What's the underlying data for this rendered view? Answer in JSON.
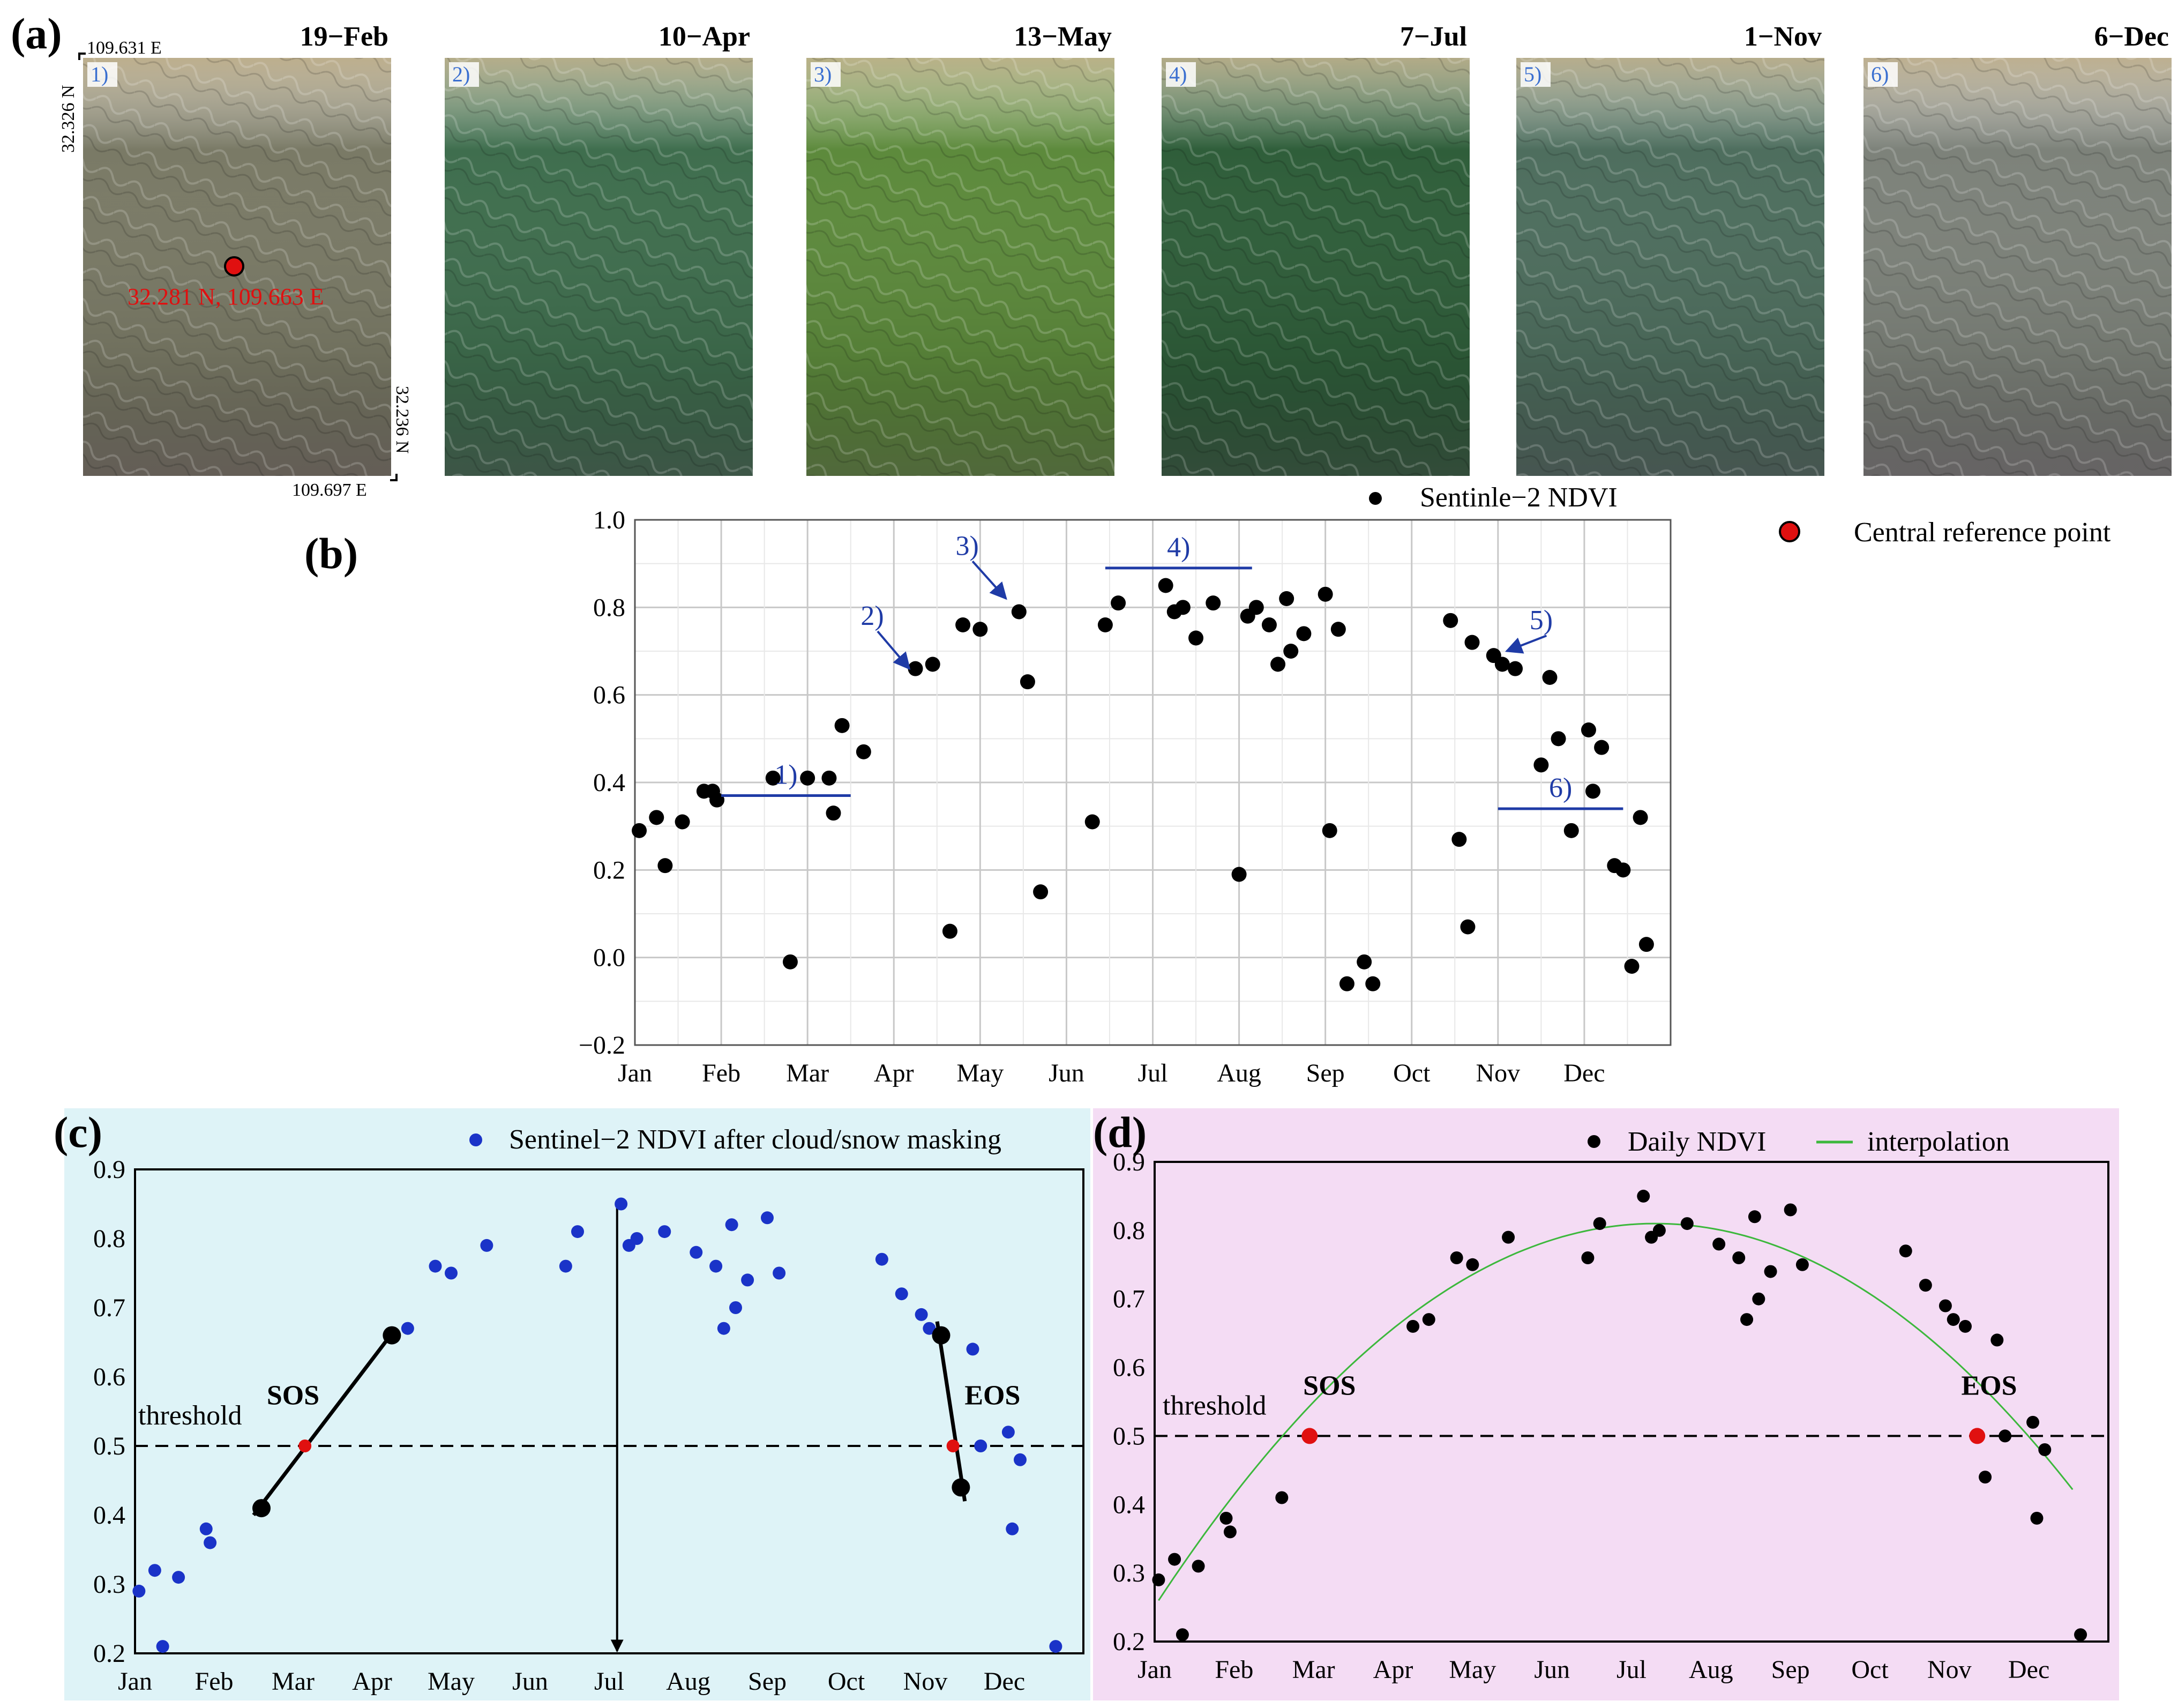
{
  "panel_a": {
    "label": "(a)",
    "images": [
      {
        "num": "1)",
        "date": "19−Feb",
        "tint": "#7a7a66"
      },
      {
        "num": "2)",
        "date": "10−Apr",
        "tint": "#3f6e4e"
      },
      {
        "num": "3)",
        "date": "13−May",
        "tint": "#5d8a3c"
      },
      {
        "num": "4)",
        "date": "7−Jul",
        "tint": "#2f5e3a"
      },
      {
        "num": "5)",
        "date": "1−Nov",
        "tint": "#4e6e5e"
      },
      {
        "num": "6)",
        "date": "6−Dec",
        "tint": "#7d827a"
      }
    ],
    "coords": {
      "top_lon": "109.631  E",
      "left_lat": "32.326  N",
      "right_lat": "32.236  N",
      "bottom_lon": "109.697  E",
      "ref_point": "32.281  N, 109.663  E"
    },
    "ref_legend": "Central reference point",
    "ref_color": "#e01010"
  },
  "months": [
    "Jan",
    "Feb",
    "Mar",
    "Apr",
    "May",
    "Jun",
    "Jul",
    "Aug",
    "Sep",
    "Oct",
    "Nov",
    "Dec"
  ],
  "chart_data": [
    {
      "panel": "(b)",
      "type": "scatter",
      "legend": "Sentinle−2 NDVI",
      "ylim": [
        -0.2,
        1.0
      ],
      "yticks": [
        "1.0",
        "0.8",
        "0.6",
        "0.4",
        "0.2",
        "0.0",
        "−0.2"
      ],
      "color": "#000000",
      "points": [
        [
          0.05,
          0.29
        ],
        [
          0.25,
          0.32
        ],
        [
          0.35,
          0.21
        ],
        [
          0.55,
          0.31
        ],
        [
          0.8,
          0.38
        ],
        [
          0.9,
          0.38
        ],
        [
          0.95,
          0.36
        ],
        [
          1.6,
          0.41
        ],
        [
          1.8,
          -0.01
        ],
        [
          2.0,
          0.41
        ],
        [
          2.25,
          0.41
        ],
        [
          2.3,
          0.33
        ],
        [
          2.4,
          0.53
        ],
        [
          2.65,
          0.47
        ],
        [
          3.25,
          0.66
        ],
        [
          3.45,
          0.67
        ],
        [
          3.65,
          0.06
        ],
        [
          3.8,
          0.76
        ],
        [
          4.0,
          0.75
        ],
        [
          4.45,
          0.79
        ],
        [
          4.55,
          0.63
        ],
        [
          4.7,
          0.15
        ],
        [
          5.3,
          0.31
        ],
        [
          5.45,
          0.76
        ],
        [
          5.6,
          0.81
        ],
        [
          6.15,
          0.85
        ],
        [
          6.25,
          0.79
        ],
        [
          6.35,
          0.8
        ],
        [
          6.5,
          0.73
        ],
        [
          6.7,
          0.81
        ],
        [
          7.0,
          0.19
        ],
        [
          7.1,
          0.78
        ],
        [
          7.2,
          0.8
        ],
        [
          7.35,
          0.76
        ],
        [
          7.45,
          0.67
        ],
        [
          7.55,
          0.82
        ],
        [
          7.6,
          0.7
        ],
        [
          7.75,
          0.74
        ],
        [
          8.0,
          0.83
        ],
        [
          8.05,
          0.29
        ],
        [
          8.15,
          0.75
        ],
        [
          8.25,
          -0.06
        ],
        [
          8.45,
          -0.01
        ],
        [
          8.55,
          -0.06
        ],
        [
          9.45,
          0.77
        ],
        [
          9.55,
          0.27
        ],
        [
          9.65,
          0.07
        ],
        [
          9.7,
          0.72
        ],
        [
          9.95,
          0.69
        ],
        [
          10.05,
          0.67
        ],
        [
          10.2,
          0.66
        ],
        [
          10.5,
          0.44
        ],
        [
          10.6,
          0.64
        ],
        [
          10.7,
          0.5
        ],
        [
          10.85,
          0.29
        ],
        [
          11.05,
          0.52
        ],
        [
          11.1,
          0.38
        ],
        [
          11.2,
          0.48
        ],
        [
          11.35,
          0.21
        ],
        [
          11.45,
          0.2
        ],
        [
          11.55,
          -0.02
        ],
        [
          11.65,
          0.32
        ],
        [
          11.72,
          0.03
        ]
      ],
      "hlines": [
        {
          "label": "1)",
          "x0": 1.0,
          "x1": 2.5,
          "y": 0.37
        },
        {
          "label": "4)",
          "x0": 5.45,
          "x1": 7.15,
          "y": 0.89
        },
        {
          "label": "6)",
          "x0": 10.0,
          "x1": 11.45,
          "y": 0.34
        }
      ],
      "arrows": [
        {
          "label": "2)",
          "tx": 2.75,
          "ty": 0.76,
          "hx": 3.18,
          "hy": 0.66
        },
        {
          "label": "3)",
          "tx": 3.85,
          "ty": 0.92,
          "hx": 4.3,
          "hy": 0.82
        },
        {
          "label": "5)",
          "tx": 10.5,
          "ty": 0.75,
          "hx": 10.1,
          "hy": 0.7
        }
      ]
    },
    {
      "panel": "(c)",
      "type": "scatter",
      "legend": "Sentinel−2 NDVI after cloud/snow masking",
      "ylim": [
        0.2,
        0.9
      ],
      "yticks": [
        "0.9",
        "0.8",
        "0.7",
        "0.6",
        "0.5",
        "0.4",
        "0.3",
        "0.2"
      ],
      "color": "#1a33c8",
      "threshold": 0.5,
      "threshold_label": "threshold",
      "sos_label": "SOS",
      "eos_label": "EOS",
      "points": [
        [
          0.05,
          0.29
        ],
        [
          0.25,
          0.32
        ],
        [
          0.35,
          0.21
        ],
        [
          0.55,
          0.31
        ],
        [
          0.9,
          0.38
        ],
        [
          0.95,
          0.36
        ],
        [
          3.45,
          0.67
        ],
        [
          3.8,
          0.76
        ],
        [
          4.0,
          0.75
        ],
        [
          4.45,
          0.79
        ],
        [
          5.45,
          0.76
        ],
        [
          5.6,
          0.81
        ],
        [
          6.15,
          0.85
        ],
        [
          6.25,
          0.79
        ],
        [
          6.35,
          0.8
        ],
        [
          6.7,
          0.81
        ],
        [
          7.1,
          0.78
        ],
        [
          7.35,
          0.76
        ],
        [
          7.45,
          0.67
        ],
        [
          7.55,
          0.82
        ],
        [
          7.6,
          0.7
        ],
        [
          7.75,
          0.74
        ],
        [
          8.0,
          0.83
        ],
        [
          8.15,
          0.75
        ],
        [
          9.45,
          0.77
        ],
        [
          9.7,
          0.72
        ],
        [
          9.95,
          0.69
        ],
        [
          10.05,
          0.67
        ],
        [
          10.6,
          0.64
        ],
        [
          10.7,
          0.5
        ],
        [
          11.05,
          0.52
        ],
        [
          11.1,
          0.38
        ],
        [
          11.2,
          0.48
        ],
        [
          11.65,
          0.21
        ]
      ],
      "big_points": [
        [
          1.6,
          0.41
        ],
        [
          3.25,
          0.66
        ],
        [
          10.2,
          0.66
        ],
        [
          10.45,
          0.44
        ]
      ],
      "segments": [
        [
          1.5,
          0.4,
          3.3,
          0.67
        ],
        [
          10.15,
          0.68,
          10.5,
          0.42
        ]
      ],
      "crossings": [
        [
          2.15,
          0.5
        ],
        [
          10.35,
          0.5
        ]
      ],
      "vline_x": 6.1
    },
    {
      "panel": "(d)",
      "type": "scatter",
      "legend": "Daily NDVI",
      "legend2": "interpolation",
      "ylim": [
        0.2,
        0.9
      ],
      "yticks": [
        "0.9",
        "0.8",
        "0.7",
        "0.6",
        "0.5",
        "0.4",
        "0.3",
        "0.2"
      ],
      "color": "#000000",
      "curve_color": "#3cb83c",
      "threshold": 0.5,
      "threshold_label": "threshold",
      "sos_label": "SOS",
      "eos_label": "EOS",
      "points": [
        [
          0.05,
          0.29
        ],
        [
          0.25,
          0.32
        ],
        [
          0.35,
          0.21
        ],
        [
          0.55,
          0.31
        ],
        [
          0.9,
          0.38
        ],
        [
          0.95,
          0.36
        ],
        [
          1.6,
          0.41
        ],
        [
          3.25,
          0.66
        ],
        [
          3.45,
          0.67
        ],
        [
          3.8,
          0.76
        ],
        [
          4.0,
          0.75
        ],
        [
          4.45,
          0.79
        ],
        [
          5.45,
          0.76
        ],
        [
          5.6,
          0.81
        ],
        [
          6.15,
          0.85
        ],
        [
          6.25,
          0.79
        ],
        [
          6.35,
          0.8
        ],
        [
          6.7,
          0.81
        ],
        [
          7.1,
          0.78
        ],
        [
          7.35,
          0.76
        ],
        [
          7.45,
          0.67
        ],
        [
          7.55,
          0.82
        ],
        [
          7.6,
          0.7
        ],
        [
          7.75,
          0.74
        ],
        [
          8.0,
          0.83
        ],
        [
          8.15,
          0.75
        ],
        [
          9.45,
          0.77
        ],
        [
          9.7,
          0.72
        ],
        [
          9.95,
          0.69
        ],
        [
          10.05,
          0.67
        ],
        [
          10.2,
          0.66
        ],
        [
          10.45,
          0.44
        ],
        [
          10.6,
          0.64
        ],
        [
          10.7,
          0.5
        ],
        [
          11.05,
          0.52
        ],
        [
          11.1,
          0.38
        ],
        [
          11.2,
          0.48
        ],
        [
          11.65,
          0.21
        ]
      ],
      "crossings": [
        [
          1.95,
          0.5
        ],
        [
          10.35,
          0.5
        ]
      ],
      "curve": {
        "peak_x": 6.3,
        "peak_y": 0.81,
        "x0": 0.05,
        "x1": 11.55,
        "start_y": 0.26
      }
    }
  ]
}
